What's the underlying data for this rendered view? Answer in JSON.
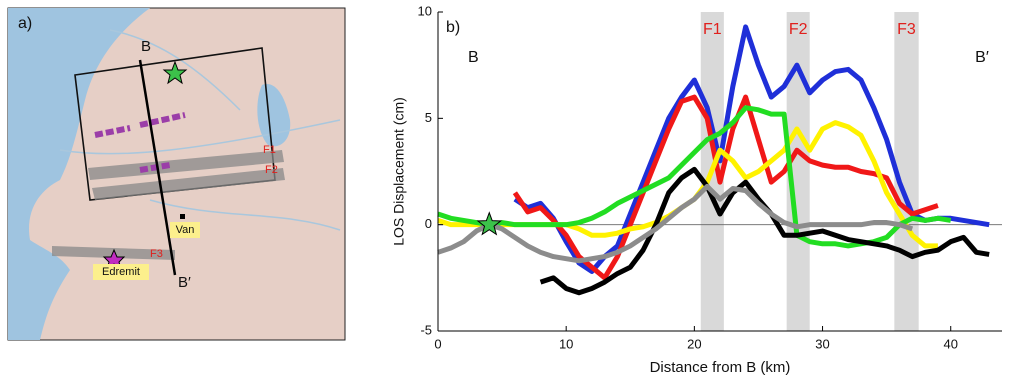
{
  "map": {
    "panel_label": "a)",
    "section_start": "B",
    "section_end": "B′",
    "faults": [
      "F1",
      "F2",
      "F3"
    ],
    "towns": [
      "Van",
      "Edremit"
    ]
  },
  "chart_data": {
    "type": "line",
    "panel_label": "b)",
    "xlabel": "Distance from B (km)",
    "ylabel": "LOS Displacement (cm)",
    "start_label": "B",
    "end_label": "B′",
    "xlim": [
      0,
      44
    ],
    "xticks": [
      0,
      10,
      20,
      30,
      40
    ],
    "ylim": [
      -5,
      10
    ],
    "yticks": [
      -5,
      0,
      5,
      10
    ],
    "faults": [
      {
        "name": "F1",
        "start": 20.5,
        "end": 22.3
      },
      {
        "name": "F2",
        "start": 27.2,
        "end": 29
      },
      {
        "name": "F3",
        "start": 35.6,
        "end": 37.5
      }
    ],
    "star": {
      "x": 4,
      "y": 0,
      "color": "#3cc24a"
    },
    "x": [
      0,
      1,
      2,
      3,
      4,
      5,
      6,
      7,
      8,
      9,
      10,
      11,
      12,
      13,
      14,
      15,
      16,
      17,
      18,
      19,
      20,
      21,
      22,
      23,
      24,
      25,
      26,
      27,
      28,
      29,
      30,
      31,
      32,
      33,
      34,
      35,
      36,
      37,
      38,
      39,
      40,
      41,
      42,
      43
    ],
    "series": [
      {
        "color": "#1f2fd8",
        "values": [
          null,
          null,
          null,
          null,
          null,
          null,
          1.2,
          0.8,
          1.0,
          0.3,
          -0.8,
          -1.8,
          -2.2,
          -1.5,
          -1.0,
          0.5,
          2.0,
          3.5,
          5.0,
          6.0,
          6.8,
          5.5,
          3.0,
          6.5,
          9.3,
          7.5,
          6.0,
          6.5,
          7.5,
          6.2,
          6.8,
          7.2,
          7.3,
          6.8,
          5.5,
          4.0,
          2.0,
          0.5,
          0.2,
          0.3,
          0.3,
          0.2,
          0.1,
          0.0
        ]
      },
      {
        "color": "#f01818",
        "values": [
          null,
          null,
          null,
          null,
          null,
          null,
          1.5,
          0.6,
          0.8,
          0.2,
          -0.5,
          -1.5,
          -2.0,
          -2.5,
          -1.5,
          0,
          1.5,
          3.0,
          4.5,
          5.8,
          6.0,
          5.0,
          2.0,
          4.5,
          6.0,
          4.0,
          2.0,
          2.5,
          3.5,
          3.0,
          2.8,
          2.7,
          2.7,
          2.5,
          2.4,
          2.2,
          1.0,
          0.5,
          0.7,
          0.9,
          null,
          null,
          null,
          null
        ]
      },
      {
        "color": "#fff200",
        "values": [
          0.2,
          0,
          0,
          0,
          0,
          0,
          0,
          0,
          0,
          0,
          0,
          -0.2,
          -0.5,
          -0.5,
          -0.4,
          -0.2,
          -0.1,
          0.1,
          0.4,
          0.8,
          1.2,
          2.0,
          3.5,
          3.0,
          2.2,
          2.5,
          3.0,
          3.5,
          4.5,
          3.5,
          4.5,
          4.8,
          4.6,
          4.2,
          3.0,
          1.5,
          0.5,
          -0.5,
          -1.0,
          -1.0,
          null,
          null,
          null,
          null
        ]
      },
      {
        "color": "#22dd22",
        "values": [
          0.5,
          0.3,
          0.2,
          0.1,
          0,
          0.1,
          0,
          0,
          0,
          0,
          0,
          0.1,
          0.3,
          0.6,
          1.0,
          1.3,
          1.6,
          1.9,
          2.2,
          2.8,
          3.4,
          4.0,
          4.3,
          4.8,
          5.5,
          5.4,
          5.2,
          5.2,
          -0.5,
          -0.8,
          -0.9,
          -0.9,
          -1.0,
          -0.9,
          -0.8,
          -0.6,
          0,
          0.3,
          0.2,
          0.3,
          0.2,
          null,
          null,
          null
        ]
      },
      {
        "color": "#000000",
        "values": [
          null,
          null,
          null,
          null,
          null,
          null,
          null,
          null,
          -2.7,
          -2.5,
          -3.0,
          -3.2,
          -3.0,
          -2.7,
          -2.3,
          -2.0,
          -1.2,
          0,
          1.5,
          2.2,
          2.6,
          1.8,
          0.5,
          1.5,
          2.0,
          1.2,
          0.5,
          -0.5,
          -0.5,
          -0.4,
          -0.3,
          -0.5,
          -0.7,
          -0.8,
          -0.9,
          -1.0,
          -1.2,
          -1.5,
          -1.3,
          -1.2,
          -0.8,
          -0.6,
          -1.3,
          -1.4
        ]
      },
      {
        "color": "#8c8c8c",
        "values": [
          -1.3,
          -1.1,
          -0.8,
          -0.3,
          0,
          -0.2,
          -0.6,
          -1.0,
          -1.3,
          -1.5,
          -1.6,
          -1.7,
          -1.6,
          -1.5,
          -1.3,
          -1.0,
          -0.6,
          -0.2,
          0.3,
          0.8,
          1.2,
          1.8,
          1.2,
          1.7,
          1.6,
          1.0,
          0.5,
          0.1,
          -0.1,
          0,
          0,
          0,
          0,
          0,
          0.1,
          0.1,
          0.0,
          -0.2,
          null,
          null,
          null,
          null,
          null,
          null
        ]
      }
    ]
  }
}
